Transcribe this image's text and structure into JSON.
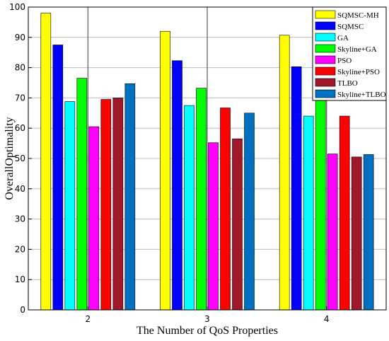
{
  "chart_data": {
    "type": "bar",
    "title": "",
    "xlabel": "The Number of QoS Properties",
    "ylabel": "OverallOptimality",
    "categories": [
      "2",
      "3",
      "4"
    ],
    "ylim": [
      0,
      100
    ],
    "yticks": [
      0,
      10,
      20,
      30,
      40,
      50,
      60,
      70,
      80,
      90,
      100
    ],
    "grid": true,
    "legend_position": "top-right",
    "series": [
      {
        "name": "SQMSC-MH",
        "color": "#ffff00",
        "values": [
          98,
          92,
          90.7
        ]
      },
      {
        "name": "SQMSC",
        "color": "#0000ff",
        "values": [
          87.5,
          82.3,
          80.3
        ]
      },
      {
        "name": "GA",
        "color": "#00ffff",
        "values": [
          68.8,
          67.5,
          64
        ]
      },
      {
        "name": "Skyline+GA",
        "color": "#00ff00",
        "values": [
          76.5,
          73.2,
          76
        ]
      },
      {
        "name": "PSO",
        "color": "#ff00ff",
        "values": [
          60.5,
          55.2,
          51.5
        ]
      },
      {
        "name": "Skyline+PSO",
        "color": "#ff0000",
        "values": [
          69.5,
          66.7,
          64
        ]
      },
      {
        "name": "TLBO",
        "color": "#a0182a",
        "values": [
          70,
          56.5,
          50.5
        ]
      },
      {
        "name": "Skyline+TLBO",
        "color": "#0070c0",
        "values": [
          74.7,
          65,
          51.3
        ]
      }
    ]
  }
}
